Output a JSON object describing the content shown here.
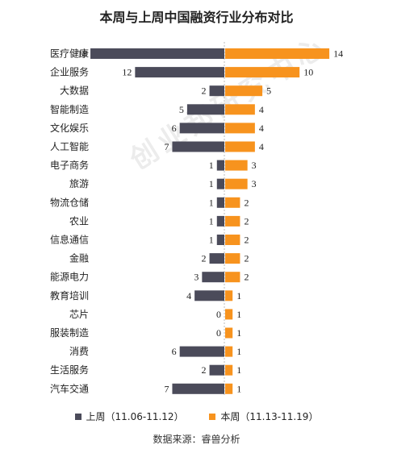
{
  "watermark": "创业邦研究中心",
  "colors": {
    "prev": "#4b4b5a",
    "curr": "#f7931e"
  },
  "legend_labels": {
    "prev": "上周（11.06-11.12）",
    "curr": "本周（11.13-11.19）"
  },
  "source": "数据来源：睿兽分析",
  "chart_data": {
    "type": "bar",
    "orientation": "diverging-horizontal",
    "title": "本周与上周中国融资行业分布对比",
    "categories": [
      "医疗健康",
      "企业服务",
      "大数据",
      "智能制造",
      "文化娱乐",
      "人工智能",
      "电子商务",
      "旅游",
      "物流仓储",
      "农业",
      "信息通信",
      "金融",
      "能源电力",
      "教育培训",
      "芯片",
      "服装制造",
      "消费",
      "生活服务",
      "汽车交通"
    ],
    "series": [
      {
        "name": "上周（11.06-11.12）",
        "values": [
          18,
          12,
          2,
          5,
          6,
          7,
          1,
          1,
          1,
          1,
          1,
          2,
          3,
          4,
          0,
          0,
          6,
          2,
          7
        ]
      },
      {
        "name": "本周（11.13-11.19）",
        "values": [
          14,
          10,
          5,
          4,
          4,
          4,
          3,
          3,
          2,
          2,
          2,
          2,
          2,
          1,
          1,
          1,
          1,
          1,
          1
        ]
      }
    ],
    "legend": "bottom"
  }
}
